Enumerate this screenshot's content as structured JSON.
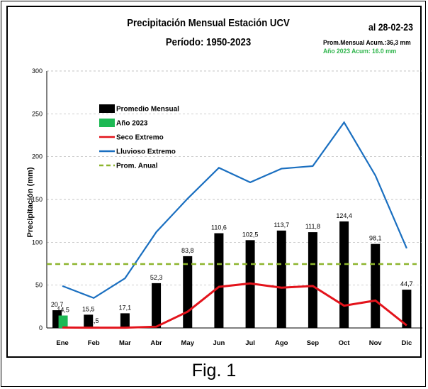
{
  "figure_caption": "Fig. 1",
  "header": {
    "title_line1": "Precipitación Mensual Estación UCV",
    "title_line2": "Período: 1950-2023",
    "date_label": "al 28-02-23",
    "acum_line1": "Prom.Mensual  Acum.:36,3 mm",
    "acum_line2": "Año 2023 Acum: 16.0 mm"
  },
  "colors": {
    "promedio": "#000000",
    "anio2023": "#1db954",
    "seco": "#e3131b",
    "lluvioso": "#1a6fc0",
    "prom_anual": "#8db52d"
  },
  "chart_data": {
    "type": "bar",
    "title": "Precipitación Mensual Estación UCV",
    "ylabel": "Precipitación (mm)",
    "xlabel": "",
    "ylim": [
      0,
      300
    ],
    "yticks": [
      "0",
      "50",
      "100",
      "150",
      "200",
      "250",
      "300"
    ],
    "categories": [
      "Ene",
      "Feb",
      "Mar",
      "Abr",
      "May",
      "Jun",
      "Jul",
      "Ago",
      "Sep",
      "Oct",
      "Nov",
      "Dic"
    ],
    "legend_position": "top-left",
    "series": [
      {
        "name": "Promedio Mensual",
        "kind": "bar",
        "values": [
          20.7,
          15.5,
          17.1,
          52.3,
          83.8,
          110.6,
          102.5,
          113.7,
          111.8,
          124.4,
          98.1,
          44.7
        ],
        "labels": [
          "20,7",
          "15,5",
          "17,1",
          "52,3",
          "83,8",
          "110,6",
          "102,5",
          "113,7",
          "111,8",
          "124,4",
          "98,1",
          "44,7"
        ]
      },
      {
        "name": "Año 2023",
        "kind": "bar",
        "values": [
          14.5,
          1.5,
          null,
          null,
          null,
          null,
          null,
          null,
          null,
          null,
          null,
          null
        ],
        "labels": [
          "14,5",
          "1,5",
          "",
          "",
          "",
          "",
          "",
          "",
          "",
          "",
          "",
          ""
        ]
      },
      {
        "name": "Seco Extremo",
        "kind": "line",
        "values": [
          0.5,
          0.3,
          0.3,
          1.5,
          19,
          48,
          52,
          47,
          49,
          26,
          32,
          3
        ]
      },
      {
        "name": "Lluvioso Extremo",
        "kind": "line",
        "values": [
          49,
          35,
          58,
          112,
          151,
          187,
          170,
          186,
          189,
          240,
          178,
          93
        ]
      },
      {
        "name": "Prom. Anual",
        "kind": "dashed",
        "values": [
          74.6,
          74.6,
          74.6,
          74.6,
          74.6,
          74.6,
          74.6,
          74.6,
          74.6,
          74.6,
          74.6,
          74.6
        ]
      }
    ]
  }
}
